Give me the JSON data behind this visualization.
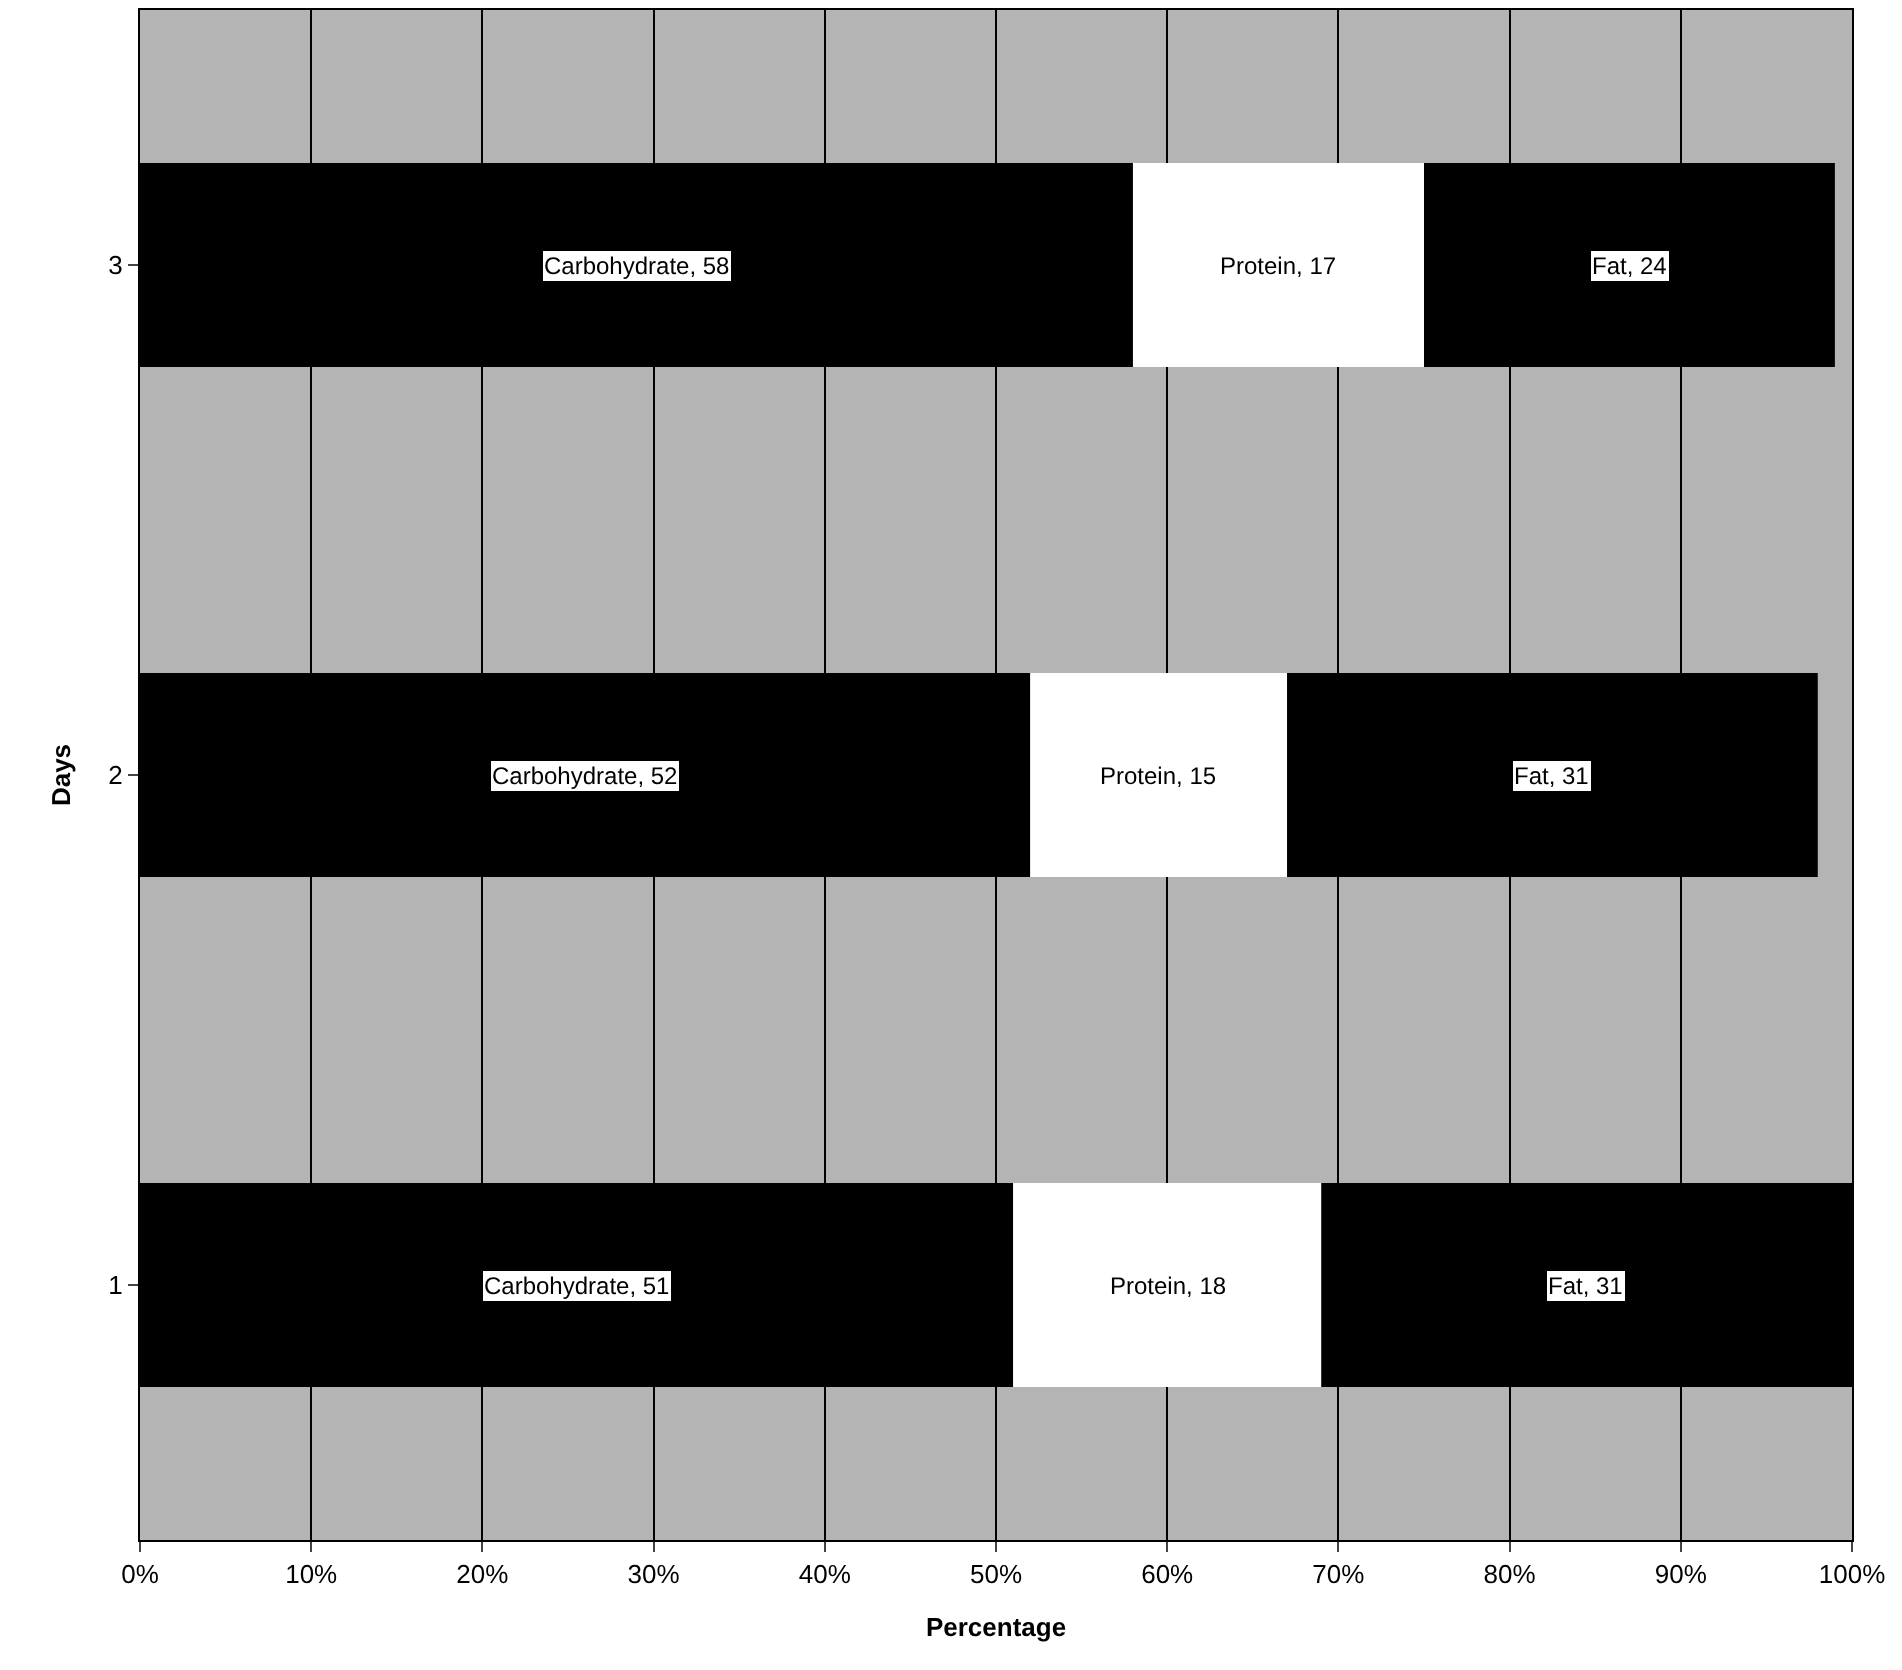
{
  "chart_data": {
    "type": "bar",
    "orientation": "horizontal",
    "stacked": true,
    "xlabel": "Percentage",
    "ylabel": "Days",
    "categories": [
      "3",
      "2",
      "1"
    ],
    "series": [
      {
        "color": "#000000",
        "values": [
          58,
          52,
          51
        ],
        "value_labels": [
          "Carbohydrate, 58",
          "Carbohydrate, 52",
          "Carbohydrate, 51"
        ]
      },
      {
        "color": "#ffffff",
        "values": [
          17,
          15,
          18
        ],
        "value_labels": [
          "Protein, 17",
          "Protein, 15",
          "Protein, 18"
        ]
      },
      {
        "color": "#000000",
        "values": [
          24,
          31,
          31
        ],
        "value_labels": [
          "Fat, 24",
          "Fat, 31",
          "Fat, 31"
        ]
      }
    ],
    "xlim": [
      0,
      100
    ],
    "xticks": [
      {
        "value": 0,
        "label": "0%"
      },
      {
        "value": 10,
        "label": "10%"
      },
      {
        "value": 20,
        "label": "20%"
      },
      {
        "value": 30,
        "label": "30%"
      },
      {
        "value": 40,
        "label": "40%"
      },
      {
        "value": 50,
        "label": "50%"
      },
      {
        "value": 60,
        "label": "60%"
      },
      {
        "value": 70,
        "label": "70%"
      },
      {
        "value": 80,
        "label": "80%"
      },
      {
        "value": 90,
        "label": "90%"
      },
      {
        "value": 100,
        "label": "100%"
      }
    ],
    "grid": "x",
    "legend": false
  }
}
